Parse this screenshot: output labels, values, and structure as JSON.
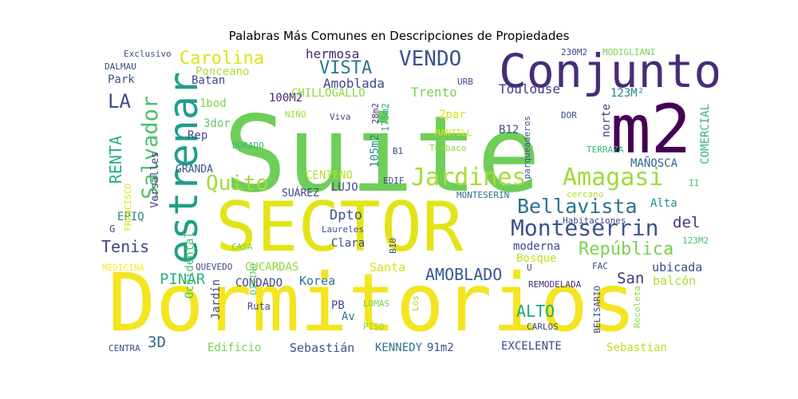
{
  "title": "Palabras Más Comunes en Descripciones de Propiedades",
  "palette": [
    "#440154",
    "#482878",
    "#3e4989",
    "#31688e",
    "#26828e",
    "#1f9e89",
    "#35b779",
    "#6ece58",
    "#b5de2b",
    "#fde725"
  ],
  "words": [
    {
      "text": "Suite",
      "color": "#6ece58"
    },
    {
      "text": "Dormitorios",
      "color": "#f3e51f"
    },
    {
      "text": "SECTOR",
      "color": "#e2e418"
    },
    {
      "text": "m2",
      "color": "#440154"
    },
    {
      "text": "Conjunto",
      "color": "#472c7a"
    },
    {
      "text": "estrenar",
      "color": "#1f9e89"
    },
    {
      "text": "Jardines",
      "color": "#a8db34"
    },
    {
      "text": "Amagasi",
      "color": "#a0da39"
    },
    {
      "text": "Monteserrin",
      "color": "#3b528b"
    },
    {
      "text": "Bellavista",
      "color": "#2c728e"
    },
    {
      "text": "República",
      "color": "#7ad151"
    },
    {
      "text": "Salvador",
      "color": "#4ac16d"
    },
    {
      "text": "Quito",
      "color": "#a5db36"
    },
    {
      "text": "VENDO",
      "color": "#3a548c"
    },
    {
      "text": "VISTA",
      "color": "#2a788e"
    },
    {
      "text": "Carolina",
      "color": "#dde318"
    },
    {
      "text": "LA",
      "color": "#3e4c8a"
    },
    {
      "text": "RENTA",
      "color": "#29af7f"
    },
    {
      "text": "Tenis",
      "color": "#3f4788"
    },
    {
      "text": "AMOBLADO",
      "color": "#38598c"
    },
    {
      "text": "ALTO",
      "color": "#21a585"
    },
    {
      "text": "PINAR",
      "color": "#2ab07f"
    },
    {
      "text": "3D",
      "color": "#31688e"
    },
    {
      "text": "San",
      "color": "#453781"
    },
    {
      "text": "del",
      "color": "#46337f"
    },
    {
      "text": "Dpto",
      "color": "#3b528b"
    },
    {
      "text": "hermosa",
      "color": "#482475"
    },
    {
      "text": "Amoblada",
      "color": "#3f4788"
    },
    {
      "text": "Toulouse",
      "color": "#443983"
    },
    {
      "text": "Trento",
      "color": "#7ad151"
    },
    {
      "text": "100M2",
      "color": "#482475"
    },
    {
      "text": "CHILLOGALLO",
      "color": "#8bd646"
    },
    {
      "text": "Ponceano",
      "color": "#addc30"
    },
    {
      "text": "Batan",
      "color": "#3e4a89"
    },
    {
      "text": "Park",
      "color": "#3b528b"
    },
    {
      "text": "1bod",
      "color": "#7fd34e"
    },
    {
      "text": "3dor",
      "color": "#5ec962"
    },
    {
      "text": "Rep",
      "color": "#3e4a89"
    },
    {
      "text": "2par",
      "color": "#d2e21b"
    },
    {
      "text": "123M²",
      "color": "#25838e"
    },
    {
      "text": "norte",
      "color": "#3e4989"
    },
    {
      "text": "COMERCIAL",
      "color": "#35b779"
    },
    {
      "text": "MAÑOSCA",
      "color": "#32658e"
    },
    {
      "text": "Alta",
      "color": "#218e8d"
    },
    {
      "text": "Bosque",
      "color": "#c2df23"
    },
    {
      "text": "moderna",
      "color": "#3f4788"
    },
    {
      "text": "ubicada",
      "color": "#3e4a89"
    },
    {
      "text": "balcón",
      "color": "#aadc32"
    },
    {
      "text": "Korea",
      "color": "#2c728e"
    },
    {
      "text": "CONDADO",
      "color": "#3e4989"
    },
    {
      "text": "CUCARDAS",
      "color": "#8fd744"
    },
    {
      "text": "Santa",
      "color": "#d5e21a"
    },
    {
      "text": "Clara",
      "color": "#3e4a89"
    },
    {
      "text": "Laureles",
      "color": "#3e4c8a"
    },
    {
      "text": "CENTENO",
      "color": "#bade28"
    },
    {
      "text": "LUJO",
      "color": "#3e4c8a"
    },
    {
      "text": "SUÁREZ",
      "color": "#3f4889"
    },
    {
      "text": "GRANDA",
      "color": "#3b528b"
    },
    {
      "text": "Versalles",
      "color": "#443a83"
    },
    {
      "text": "EPIQ",
      "color": "#25848e"
    },
    {
      "text": "Edificio",
      "color": "#7ad151"
    },
    {
      "text": "Sebastián",
      "color": "#3b528b"
    },
    {
      "text": "KENNEDY",
      "color": "#2c728e"
    },
    {
      "text": "91m2",
      "color": "#3b528b"
    },
    {
      "text": "EXCELENTE",
      "color": "#3e4a89"
    },
    {
      "text": "Sebastian",
      "color": "#b8de29"
    },
    {
      "text": "Jardín",
      "color": "#3e4a89"
    },
    {
      "text": "PB",
      "color": "#3e4c8a"
    },
    {
      "text": "Av",
      "color": "#2a788e"
    },
    {
      "text": "Ruta",
      "color": "#3e4a89"
    },
    {
      "text": "LOMAS",
      "color": "#73d056"
    },
    {
      "text": "PISO",
      "color": "#8bd646"
    },
    {
      "text": "Los",
      "color": "#a2da37"
    },
    {
      "text": "CARLOS",
      "color": "#3e4a89"
    },
    {
      "text": "BELISARIO",
      "color": "#3e4989"
    },
    {
      "text": "Recoleta",
      "color": "#8fd744"
    },
    {
      "text": "REMODELADA",
      "color": "#472d7b"
    },
    {
      "text": "FAC",
      "color": "#3e4a89"
    },
    {
      "text": "U",
      "color": "#3e4c8a"
    },
    {
      "text": "123M2",
      "color": "#4ac16d"
    },
    {
      "text": "Habitaciones",
      "color": "#3e4a89"
    },
    {
      "text": "cercano",
      "color": "#b0dd2f"
    },
    {
      "text": "MONTESERIN",
      "color": "#2d718e"
    },
    {
      "text": "II",
      "color": "#44bf70"
    },
    {
      "text": "TERRAZA",
      "color": "#35b779"
    },
    {
      "text": "parqueaderos",
      "color": "#3b528b"
    },
    {
      "text": "DOR",
      "color": "#3e4a89"
    },
    {
      "text": "B12",
      "color": "#3b528b"
    },
    {
      "text": "MANTILL",
      "color": "#d8e219"
    },
    {
      "text": "Tumbaco",
      "color": "#8fd744"
    },
    {
      "text": "B1",
      "color": "#3e4a89"
    },
    {
      "text": "URB",
      "color": "#3e4c8a"
    },
    {
      "text": "Viva",
      "color": "#3e4a89"
    },
    {
      "text": "28m2",
      "color": "#46327e"
    },
    {
      "text": "175m2",
      "color": "#32b67a"
    },
    {
      "text": "105m2",
      "color": "#218e8d"
    },
    {
      "text": "EDIF",
      "color": "#3e4a89"
    },
    {
      "text": "B10",
      "color": "#3e4a89"
    },
    {
      "text": "DORADO",
      "color": "#35b779"
    },
    {
      "text": "NIÑO",
      "color": "#a5db36"
    },
    {
      "text": "Occidental",
      "color": "#4ac16d"
    },
    {
      "text": "DIVINO",
      "color": "#5ec962"
    },
    {
      "text": "CASA",
      "color": "#7ad151"
    },
    {
      "text": "QUEVEDO",
      "color": "#3e4a89"
    },
    {
      "text": "MEDICINA",
      "color": "#fde725"
    },
    {
      "text": "FRANCISCO",
      "color": "#dde318"
    },
    {
      "text": "G",
      "color": "#3e4a89"
    },
    {
      "text": "CENTRA",
      "color": "#3e4c8a"
    },
    {
      "text": "Exclusivo",
      "color": "#3e4c8a"
    },
    {
      "text": "DALMAU",
      "color": "#3e4c8a"
    },
    {
      "text": "230M2",
      "color": "#3e4a89"
    },
    {
      "text": "MODIGLIANI",
      "color": "#7ad151"
    }
  ]
}
